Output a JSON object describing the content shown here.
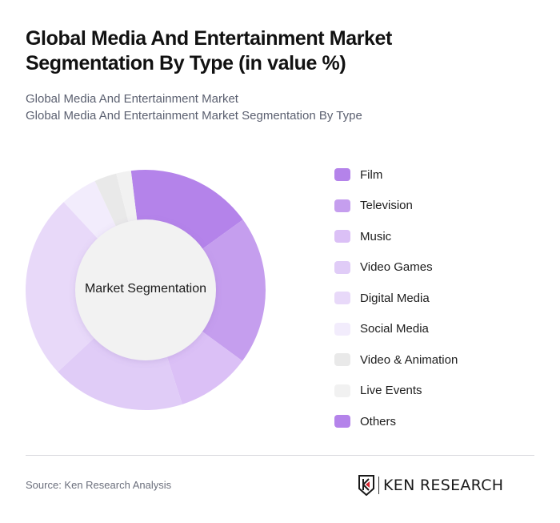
{
  "header": {
    "title": "Global Media And Entertainment Market Segmentation By Type (in value %)",
    "subtitle_line1": "Global Media And Entertainment Market",
    "subtitle_line2": "Global Media And Entertainment Market Segmentation By Type"
  },
  "chart": {
    "center_label": "Market Segmentation"
  },
  "legend": [
    {
      "label": "Film",
      "color": "#b483ea"
    },
    {
      "label": "Television",
      "color": "#c59eee"
    },
    {
      "label": "Music",
      "color": "#dbc0f6"
    },
    {
      "label": "Video Games",
      "color": "#e0ccf7"
    },
    {
      "label": "Digital Media",
      "color": "#e8d9f9"
    },
    {
      "label": "Social Media",
      "color": "#f2ecfc"
    },
    {
      "label": "Video & Animation",
      "color": "#e9e9e9"
    },
    {
      "label": "Live Events",
      "color": "#f1f1f1"
    },
    {
      "label": "Others",
      "color": "#b483ea"
    }
  ],
  "footer": {
    "source": "Source: Ken Research Analysis",
    "logo_text": "KEN RESEARCH"
  },
  "chart_data": {
    "type": "pie",
    "subtype": "donut",
    "title": "Global Media And Entertainment Market Segmentation By Type (in value %)",
    "center_label": "Market Segmentation",
    "categories": [
      "Film",
      "Television",
      "Music",
      "Video Games",
      "Digital Media",
      "Social Media",
      "Video & Animation",
      "Live Events",
      "Others"
    ],
    "values": [
      17,
      20,
      10,
      18,
      25,
      5,
      3,
      2,
      0
    ],
    "colors": [
      "#b483ea",
      "#c59eee",
      "#dbc0f6",
      "#e0ccf7",
      "#e8d9f9",
      "#f2ecfc",
      "#e9e9e9",
      "#f1f1f1",
      "#b483ea"
    ],
    "start_angle_deg": -7,
    "legend_position": "right",
    "unit": "%"
  }
}
